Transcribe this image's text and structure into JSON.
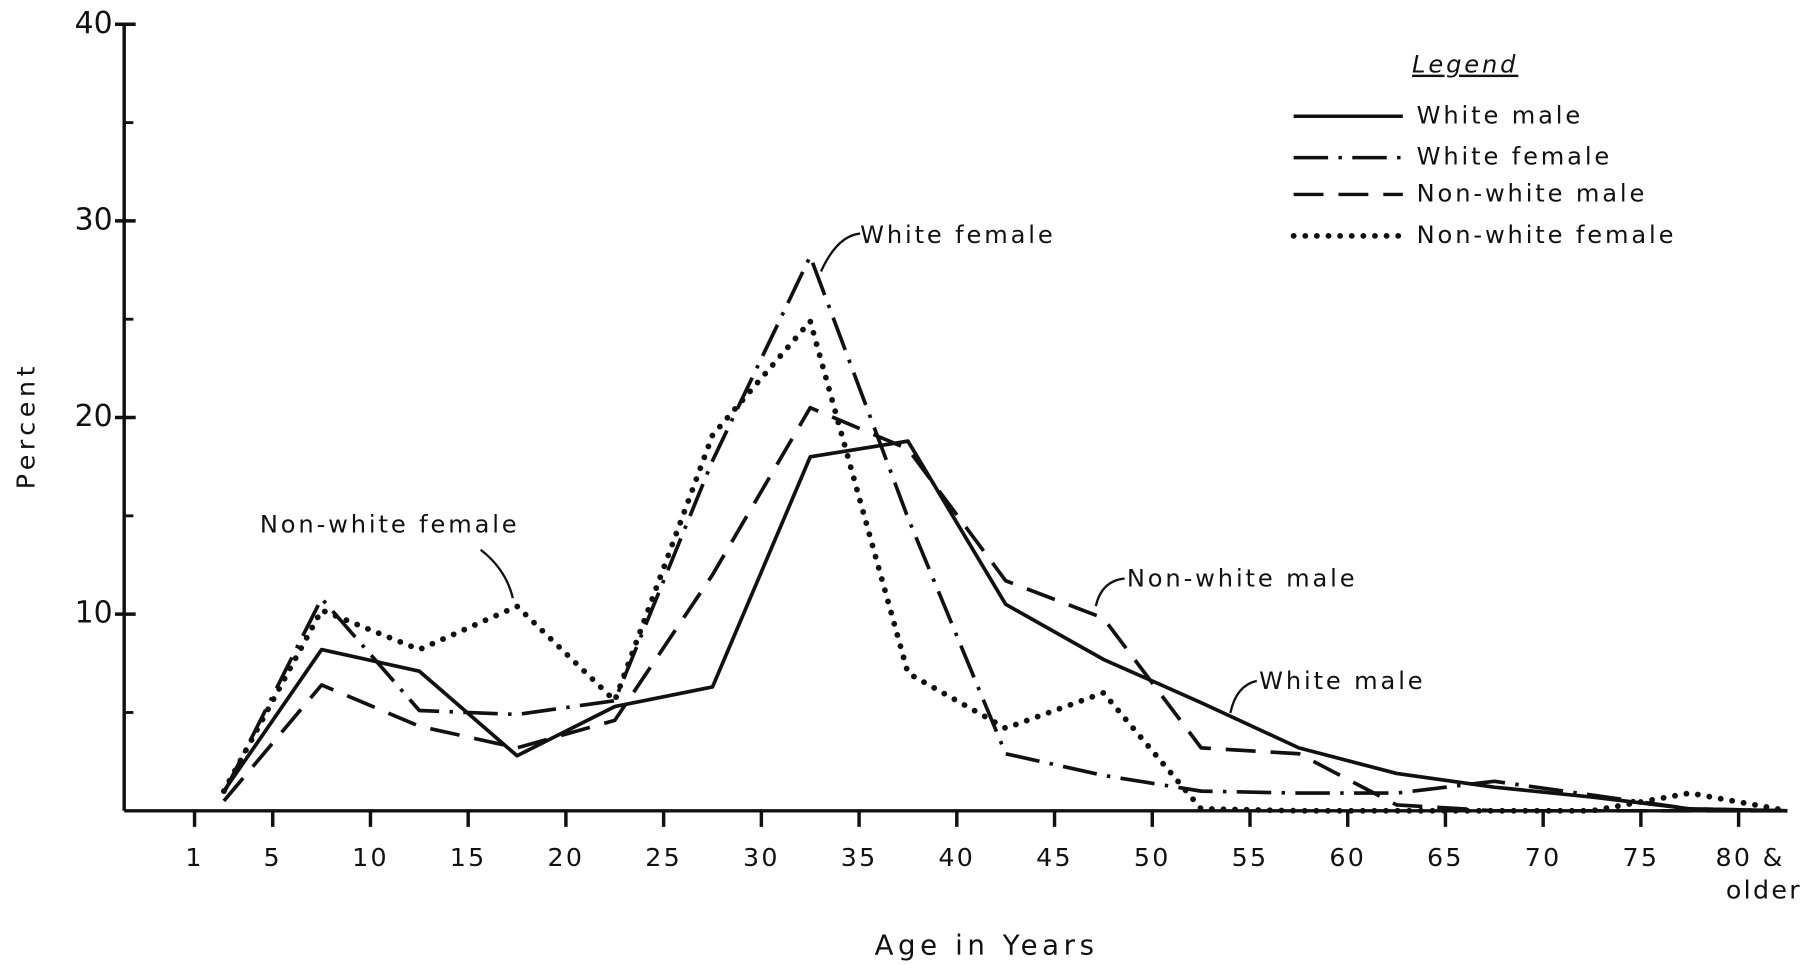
{
  "chart_data": {
    "type": "line",
    "xlabel": "Age in Years",
    "ylabel": "Percent",
    "legend_title": "Legend",
    "legend": "upper right",
    "x": [
      2.5,
      7.5,
      12.5,
      17.5,
      22.5,
      27.5,
      32.5,
      37.5,
      42.5,
      47.5,
      52.5,
      57.5,
      62.5,
      67.5,
      72.5,
      77.5,
      82.5
    ],
    "series": [
      {
        "name": "White male",
        "color": "#111111",
        "dash": "solid",
        "values": [
          1.0,
          8.2,
          7.1,
          2.8,
          5.3,
          6.3,
          18.0,
          18.8,
          10.5,
          7.7,
          5.5,
          3.2,
          1.9,
          1.2,
          0.7,
          0.1,
          0
        ]
      },
      {
        "name": "White female",
        "color": "#111111",
        "dash": "dashdot",
        "values": [
          0.9,
          10.8,
          5.1,
          4.9,
          5.6,
          17.8,
          28.2,
          14.9,
          2.9,
          1.8,
          1.0,
          0.9,
          0.9,
          1.5,
          0.8,
          0.1,
          0
        ]
      },
      {
        "name": "Non-white male",
        "color": "#111111",
        "dash": "dashed",
        "values": [
          0.5,
          6.4,
          4.3,
          3.2,
          4.6,
          12.0,
          20.5,
          18.4,
          11.7,
          9.8,
          3.2,
          2.9,
          0.3,
          0,
          0,
          0,
          0
        ]
      },
      {
        "name": "Non-white female",
        "color": "#111111",
        "dash": "dotted",
        "values": [
          1.0,
          10.2,
          8.2,
          10.4,
          5.6,
          19.1,
          24.9,
          7.0,
          4.2,
          6.0,
          0.1,
          0,
          0,
          0,
          0,
          0.9,
          0
        ]
      }
    ],
    "annotations": [
      "White female",
      "Non-white female",
      "Non-white male",
      "White male"
    ],
    "xlim": [
      -2.6,
      82.5
    ],
    "xticks": [
      1,
      5,
      10,
      15,
      20,
      25,
      30,
      35,
      40,
      45,
      50,
      55,
      60,
      65,
      70,
      75,
      {
        "value": 80,
        "label": "80 & older"
      }
    ],
    "ylim": [
      0,
      40
    ],
    "yticks": [
      10,
      20,
      30,
      40
    ],
    "yminor": [
      5,
      15,
      25,
      35
    ]
  }
}
